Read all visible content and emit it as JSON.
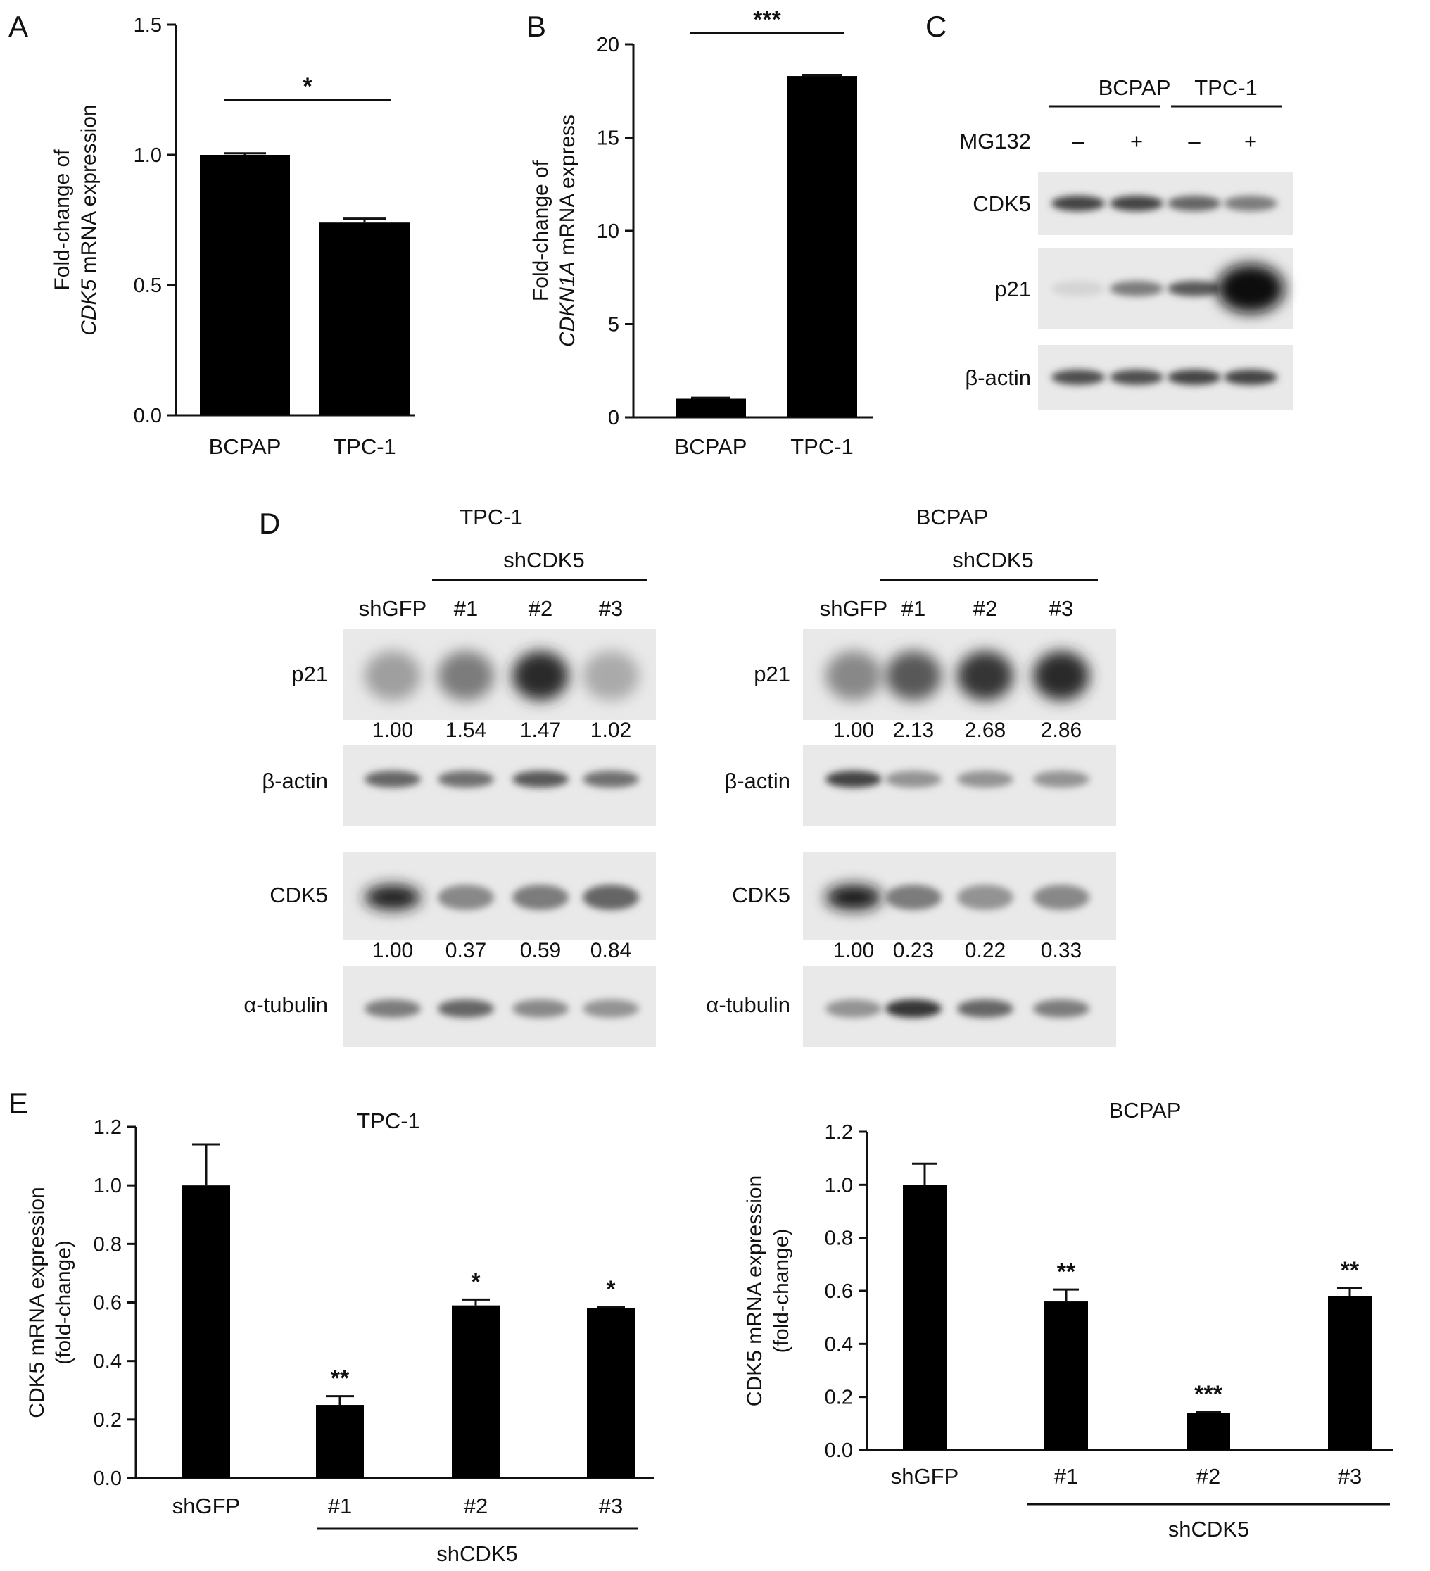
{
  "panel_letters": [
    "A",
    "B",
    "C",
    "D",
    "E"
  ],
  "chart_data": [
    {
      "type": "bar",
      "panel": "A",
      "categories": [
        "BCPAP",
        "TPC-1"
      ],
      "values": [
        1.0,
        0.74
      ],
      "errors": [
        0.006,
        0.015
      ],
      "ylabel_line1": "Fold-change of",
      "ylabel_line2_italic": "CDK5",
      "ylabel_line2_rest": " mRNA expression",
      "ylim": [
        0,
        1.5
      ],
      "yticks": [
        "0.0",
        "0.5",
        "1.0",
        "1.5"
      ],
      "significance": "*"
    },
    {
      "type": "bar",
      "panel": "B",
      "categories": [
        "BCPAP",
        "TPC-1"
      ],
      "values": [
        1.0,
        18.3
      ],
      "errors": [
        0.05,
        0.06
      ],
      "ylabel_line1": "Fold-change of",
      "ylabel_line2_italic": "CDKN1A",
      "ylabel_line2_rest": " mRNA express",
      "ylim": [
        0,
        20
      ],
      "yticks": [
        "0",
        "5",
        "10",
        "15",
        "20"
      ],
      "significance": "***"
    },
    {
      "type": "bar",
      "panel": "E-left",
      "title": "TPC-1",
      "categories": [
        "shGFP",
        "#1",
        "#2",
        "#3"
      ],
      "group_label": "shCDK5",
      "values": [
        1.0,
        0.25,
        0.59,
        0.58
      ],
      "errors": [
        0.14,
        0.03,
        0.02,
        0.004
      ],
      "stars": [
        "",
        "**",
        "*",
        "*"
      ],
      "ylabel_line1": "CDK5 mRNA expression",
      "ylabel_line2": "(fold-change)",
      "ylim": [
        0,
        1.2
      ],
      "yticks": [
        "0.0",
        "0.2",
        "0.4",
        "0.6",
        "0.8",
        "1.0",
        "1.2"
      ]
    },
    {
      "type": "bar",
      "panel": "E-right",
      "title": "BCPAP",
      "categories": [
        "shGFP",
        "#1",
        "#2",
        "#3"
      ],
      "group_label": "shCDK5",
      "values": [
        1.0,
        0.56,
        0.14,
        0.58
      ],
      "errors": [
        0.08,
        0.045,
        0.004,
        0.03
      ],
      "stars": [
        "",
        "**",
        "***",
        "**"
      ],
      "ylabel_line1": "CDK5 mRNA expression",
      "ylabel_line2": "(fold-change)",
      "ylim": [
        0,
        1.2
      ],
      "yticks": [
        "0.0",
        "0.2",
        "0.4",
        "0.6",
        "0.8",
        "1.0",
        "1.2"
      ]
    }
  ],
  "blot_c": {
    "groups": [
      "BCPAP",
      "TPC-1"
    ],
    "treatment_label": "MG132",
    "treatment_signs": [
      "–",
      "+",
      "–",
      "+"
    ],
    "rows": [
      {
        "label": "CDK5",
        "intensity": [
          0.75,
          0.75,
          0.6,
          0.5
        ]
      },
      {
        "label": "p21",
        "intensity": [
          0.12,
          0.5,
          0.65,
          1.0
        ]
      },
      {
        "label": "β-actin",
        "intensity": [
          0.7,
          0.7,
          0.75,
          0.75
        ]
      }
    ]
  },
  "blot_d": [
    {
      "title": "TPC-1",
      "group_label": "shCDK5",
      "lanes": [
        "shGFP",
        "#1",
        "#2",
        "#3"
      ],
      "p21_label": "p21",
      "p21_values": [
        "1.00",
        "1.54",
        "1.47",
        "1.02"
      ],
      "p21_intensity": [
        0.35,
        0.5,
        0.85,
        0.3
      ],
      "actin_label": "β-actin",
      "actin_intensity": [
        0.6,
        0.55,
        0.65,
        0.55
      ],
      "cdk5_label": "CDK5",
      "cdk5_values": [
        "1.00",
        "0.37",
        "0.59",
        "0.84"
      ],
      "cdk5_intensity": [
        0.9,
        0.45,
        0.5,
        0.6
      ],
      "tubulin_label": "α-tubulin",
      "tubulin_intensity": [
        0.5,
        0.6,
        0.45,
        0.4
      ]
    },
    {
      "title": "BCPAP",
      "group_label": "shCDK5",
      "lanes": [
        "shGFP",
        "#1",
        "#2",
        "#3"
      ],
      "p21_label": "p21",
      "p21_values": [
        "1.00",
        "2.13",
        "2.68",
        "2.86"
      ],
      "p21_intensity": [
        0.45,
        0.65,
        0.8,
        0.85
      ],
      "actin_label": "β-actin",
      "actin_intensity": [
        0.75,
        0.4,
        0.4,
        0.4
      ],
      "cdk5_label": "CDK5",
      "cdk5_values": [
        "1.00",
        "0.23",
        "0.22",
        "0.33"
      ],
      "cdk5_intensity": [
        0.95,
        0.5,
        0.4,
        0.45
      ],
      "tubulin_label": "α-tubulin",
      "tubulin_intensity": [
        0.4,
        0.8,
        0.6,
        0.5
      ]
    }
  ]
}
